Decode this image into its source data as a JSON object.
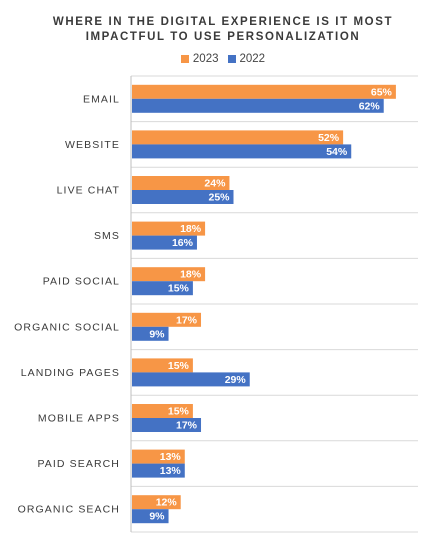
{
  "chart_data": {
    "type": "bar",
    "orientation": "horizontal",
    "title_lines": [
      "WHERE IN THE DIGITAL EXPERIENCE IS IT MOST",
      "IMPACTFUL TO USE PERSONALIZATION"
    ],
    "categories": [
      "EMAIL",
      "WEBSITE",
      "LIVE CHAT",
      "SMS",
      "PAID SOCIAL",
      "ORGANIC SOCIAL",
      "LANDING PAGES",
      "MOBILE APPS",
      "PAID SEARCH",
      "ORGANIC SEACH"
    ],
    "series": [
      {
        "name": "2023",
        "color": "#F79646",
        "values": [
          65,
          52,
          24,
          18,
          18,
          17,
          15,
          15,
          13,
          12
        ]
      },
      {
        "name": "2022",
        "color": "#4472C4",
        "values": [
          62,
          54,
          25,
          16,
          15,
          9,
          29,
          17,
          13,
          9
        ]
      }
    ],
    "value_suffix": "%",
    "xlim": [
      0,
      70
    ],
    "legend_position": "top-center",
    "grid": "horizontal separators"
  }
}
